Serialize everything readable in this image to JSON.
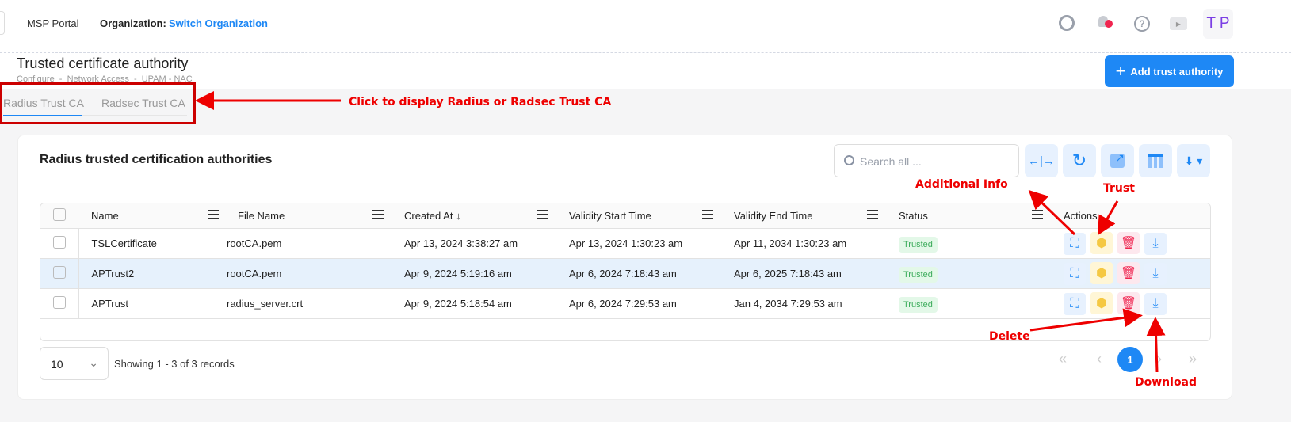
{
  "header": {
    "app": "MSP Portal",
    "org_label": "Organization:",
    "org_link": "Switch Organization",
    "avatar": "T P"
  },
  "page": {
    "title": "Trusted certificate authority",
    "breadcrumb": "Configure  -  Network Access  -  UPAM - NAC",
    "add_button": "Add trust authority"
  },
  "tabs": [
    {
      "label": "Radius Trust CA",
      "active": true
    },
    {
      "label": "Radsec Trust CA",
      "active": false
    }
  ],
  "card": {
    "title": "Radius trusted certification authorities",
    "search_placeholder": "Search all ..."
  },
  "table": {
    "columns": [
      "Name",
      "File Name",
      "Created At",
      "Validity Start Time",
      "Validity End Time",
      "Status",
      "Actions"
    ],
    "rows": [
      {
        "name": "TSLCertificate",
        "file": "rootCA.pem",
        "created": "Apr 13, 2024 3:38:27 am",
        "start": "Apr 13, 2024 1:30:23 am",
        "end": "Apr 11, 2034 1:30:23 am",
        "status": "Trusted"
      },
      {
        "name": "APTrust2",
        "file": "rootCA.pem",
        "created": "Apr 9, 2024 5:19:16 am",
        "start": "Apr 6, 2024 7:18:43 am",
        "end": "Apr 6, 2025 7:18:43 am",
        "status": "Trusted"
      },
      {
        "name": "APTrust",
        "file": "radius_server.crt",
        "created": "Apr 9, 2024 5:18:54 am",
        "start": "Apr 6, 2024 7:29:53 am",
        "end": "Jan 4, 2034 7:29:53 am",
        "status": "Trusted"
      }
    ]
  },
  "pagination": {
    "page_size": "10",
    "summary": "Showing 1 - 3 of 3 records",
    "current_page": "1"
  },
  "annotations": {
    "tabs": "Click to display Radius or Radsec Trust CA",
    "info": "Additional Info",
    "trust": "Trust",
    "delete": "Delete",
    "download": "Download"
  },
  "colors": {
    "accent": "#1e88f5",
    "annotation": "#e00000"
  }
}
